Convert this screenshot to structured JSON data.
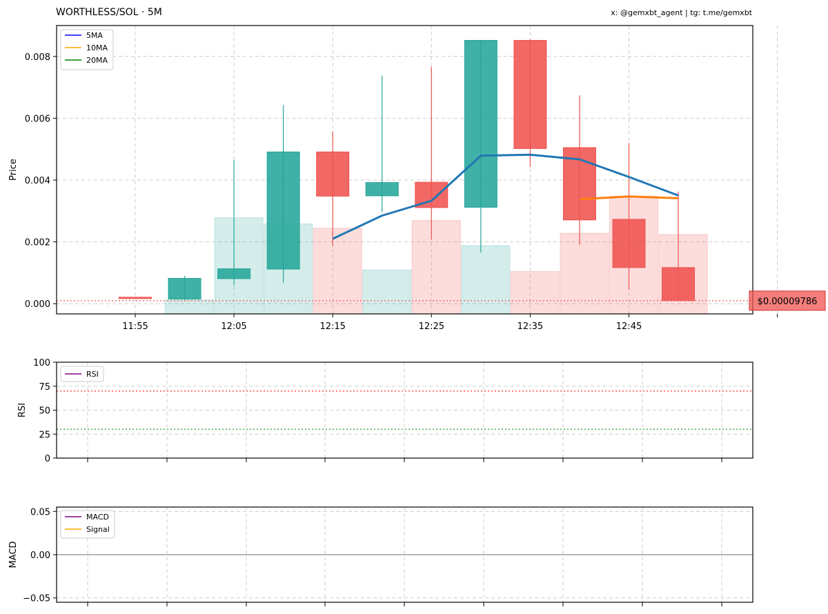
{
  "header": {
    "title": "WORTHLESS/SOL · 5M",
    "credit": "x: @gemxbt_agent | tg: t.me/gemxbt"
  },
  "colors": {
    "up": "#26a69a",
    "down": "#ef5350",
    "ma5": "#1f77b4",
    "ma10": "#ff7f0e",
    "legend_ma5": "#0000ff",
    "legend_ma10": "#ffa500",
    "legend_ma20": "#008000",
    "rsi": "#800080",
    "macd": "#800080",
    "signal": "#ffa500",
    "overbought": "#ff0000",
    "oversold": "#008000",
    "grid": "#cccccc"
  },
  "chart_data": [
    {
      "type": "candlestick",
      "title": "WORTHLESS/SOL · 5M",
      "ylabel": "Price",
      "ylim": [
        -0.00033,
        0.009
      ],
      "x_ticks": [
        "11:55",
        "12:05",
        "12:15",
        "12:25",
        "12:35",
        "12:45"
      ],
      "candles": [
        {
          "time": "11:55",
          "open": 0.00021,
          "high": 0.00021,
          "low": 0.00019,
          "close": 0.00019,
          "volume": 0.0
        },
        {
          "time": "12:00",
          "open": 0.00015,
          "high": 0.0009,
          "low": 0.00012,
          "close": 0.00082,
          "volume": 0.00012
        },
        {
          "time": "12:05",
          "open": 0.00081,
          "high": 0.00466,
          "low": 0.0006,
          "close": 0.00113,
          "volume": 0.00278
        },
        {
          "time": "12:10",
          "open": 0.00112,
          "high": 0.00643,
          "low": 0.00068,
          "close": 0.00491,
          "volume": 0.00258
        },
        {
          "time": "12:15",
          "open": 0.00491,
          "high": 0.00557,
          "low": 0.00186,
          "close": 0.00348,
          "volume": 0.00244
        },
        {
          "time": "12:20",
          "open": 0.00349,
          "high": 0.00738,
          "low": 0.00296,
          "close": 0.00392,
          "volume": 0.00109
        },
        {
          "time": "12:25",
          "open": 0.00393,
          "high": 0.00767,
          "low": 0.00208,
          "close": 0.00311,
          "volume": 0.00269
        },
        {
          "time": "12:30",
          "open": 0.00312,
          "high": 0.00852,
          "low": 0.00165,
          "close": 0.00852,
          "volume": 0.00188
        },
        {
          "time": "12:35",
          "open": 0.00852,
          "high": 0.00856,
          "low": 0.00442,
          "close": 0.00502,
          "volume": 0.00104
        },
        {
          "time": "12:40",
          "open": 0.00505,
          "high": 0.00674,
          "low": 0.0019,
          "close": 0.00271,
          "volume": 0.00228
        },
        {
          "time": "12:45",
          "open": 0.00273,
          "high": 0.0052,
          "low": 0.00045,
          "close": 0.00117,
          "volume": 0.00348
        },
        {
          "time": "12:50",
          "open": 0.00117,
          "high": 0.00363,
          "low": 0.0001,
          "close": 0.0001,
          "volume": 0.00224
        }
      ],
      "series": [
        {
          "name": "5MA",
          "points": [
            {
              "time": "12:15",
              "value": 0.0021
            },
            {
              "time": "12:20",
              "value": 0.00285
            },
            {
              "time": "12:25",
              "value": 0.00333
            },
            {
              "time": "12:30",
              "value": 0.00479
            },
            {
              "time": "12:35",
              "value": 0.00482
            },
            {
              "time": "12:40",
              "value": 0.00467
            },
            {
              "time": "12:45",
              "value": 0.0041
            },
            {
              "time": "12:50",
              "value": 0.0035
            }
          ]
        },
        {
          "name": "10MA",
          "points": [
            {
              "time": "12:40",
              "value": 0.00338
            },
            {
              "time": "12:45",
              "value": 0.00347
            },
            {
              "time": "12:50",
              "value": 0.00341
            }
          ]
        },
        {
          "name": "20MA",
          "points": []
        }
      ],
      "last_price_line": 9.786e-05,
      "last_price_label": "$0.00009786",
      "legend": [
        "5MA",
        "10MA",
        "20MA"
      ],
      "legend_position": "top-left",
      "grid": true
    },
    {
      "type": "line",
      "ylabel": "RSI",
      "ylim": [
        0,
        100
      ],
      "y_ticks": [
        "0",
        "25",
        "50",
        "75",
        "100"
      ],
      "series": [
        {
          "name": "RSI",
          "values": []
        }
      ],
      "overbought": 70,
      "oversold": 30,
      "legend": [
        "RSI"
      ],
      "legend_position": "top-left",
      "grid": true
    },
    {
      "type": "line",
      "ylabel": "MACD",
      "ylim": [
        -0.055,
        0.055
      ],
      "y_ticks": [
        "−0.05",
        "0.00",
        "0.05"
      ],
      "series": [
        {
          "name": "MACD",
          "values": []
        },
        {
          "name": "Signal",
          "values": []
        }
      ],
      "zero_line": 0,
      "legend": [
        "MACD",
        "Signal"
      ],
      "legend_position": "top-left",
      "grid": true
    }
  ]
}
